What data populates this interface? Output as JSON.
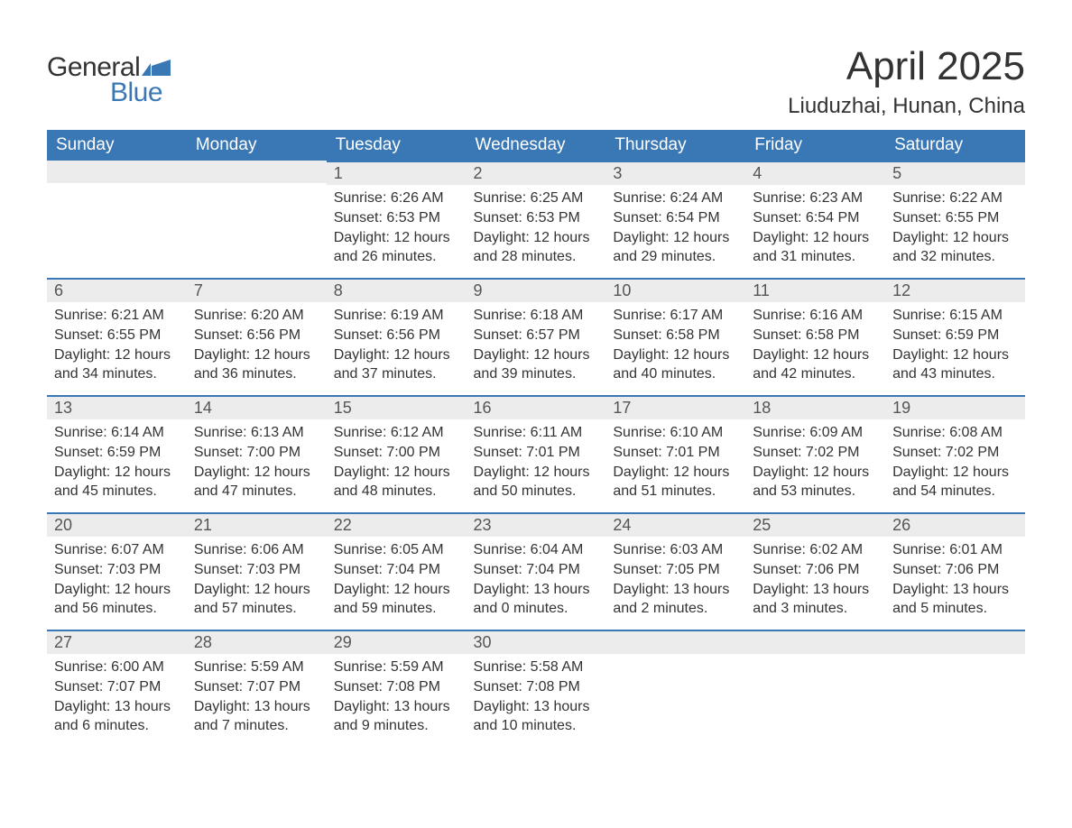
{
  "logo": {
    "text_general": "General",
    "text_blue": "Blue",
    "flag_color": "#3a78b5"
  },
  "title": {
    "month": "April 2025",
    "location": "Liuduzhai, Hunan, China"
  },
  "styling": {
    "header_bg": "#3a78b5",
    "header_text": "#ffffff",
    "daynum_bg": "#ececec",
    "daynum_border": "#3a78b5",
    "body_text": "#333333",
    "page_bg": "#ffffff",
    "title_fontsize": 44,
    "location_fontsize": 24,
    "header_fontsize": 19,
    "daynum_fontsize": 18,
    "cell_fontsize": 16
  },
  "weekdays": [
    "Sunday",
    "Monday",
    "Tuesday",
    "Wednesday",
    "Thursday",
    "Friday",
    "Saturday"
  ],
  "weeks": [
    [
      null,
      null,
      {
        "n": "1",
        "sr": "Sunrise: 6:26 AM",
        "ss": "Sunset: 6:53 PM",
        "d1": "Daylight: 12 hours",
        "d2": "and 26 minutes."
      },
      {
        "n": "2",
        "sr": "Sunrise: 6:25 AM",
        "ss": "Sunset: 6:53 PM",
        "d1": "Daylight: 12 hours",
        "d2": "and 28 minutes."
      },
      {
        "n": "3",
        "sr": "Sunrise: 6:24 AM",
        "ss": "Sunset: 6:54 PM",
        "d1": "Daylight: 12 hours",
        "d2": "and 29 minutes."
      },
      {
        "n": "4",
        "sr": "Sunrise: 6:23 AM",
        "ss": "Sunset: 6:54 PM",
        "d1": "Daylight: 12 hours",
        "d2": "and 31 minutes."
      },
      {
        "n": "5",
        "sr": "Sunrise: 6:22 AM",
        "ss": "Sunset: 6:55 PM",
        "d1": "Daylight: 12 hours",
        "d2": "and 32 minutes."
      }
    ],
    [
      {
        "n": "6",
        "sr": "Sunrise: 6:21 AM",
        "ss": "Sunset: 6:55 PM",
        "d1": "Daylight: 12 hours",
        "d2": "and 34 minutes."
      },
      {
        "n": "7",
        "sr": "Sunrise: 6:20 AM",
        "ss": "Sunset: 6:56 PM",
        "d1": "Daylight: 12 hours",
        "d2": "and 36 minutes."
      },
      {
        "n": "8",
        "sr": "Sunrise: 6:19 AM",
        "ss": "Sunset: 6:56 PM",
        "d1": "Daylight: 12 hours",
        "d2": "and 37 minutes."
      },
      {
        "n": "9",
        "sr": "Sunrise: 6:18 AM",
        "ss": "Sunset: 6:57 PM",
        "d1": "Daylight: 12 hours",
        "d2": "and 39 minutes."
      },
      {
        "n": "10",
        "sr": "Sunrise: 6:17 AM",
        "ss": "Sunset: 6:58 PM",
        "d1": "Daylight: 12 hours",
        "d2": "and 40 minutes."
      },
      {
        "n": "11",
        "sr": "Sunrise: 6:16 AM",
        "ss": "Sunset: 6:58 PM",
        "d1": "Daylight: 12 hours",
        "d2": "and 42 minutes."
      },
      {
        "n": "12",
        "sr": "Sunrise: 6:15 AM",
        "ss": "Sunset: 6:59 PM",
        "d1": "Daylight: 12 hours",
        "d2": "and 43 minutes."
      }
    ],
    [
      {
        "n": "13",
        "sr": "Sunrise: 6:14 AM",
        "ss": "Sunset: 6:59 PM",
        "d1": "Daylight: 12 hours",
        "d2": "and 45 minutes."
      },
      {
        "n": "14",
        "sr": "Sunrise: 6:13 AM",
        "ss": "Sunset: 7:00 PM",
        "d1": "Daylight: 12 hours",
        "d2": "and 47 minutes."
      },
      {
        "n": "15",
        "sr": "Sunrise: 6:12 AM",
        "ss": "Sunset: 7:00 PM",
        "d1": "Daylight: 12 hours",
        "d2": "and 48 minutes."
      },
      {
        "n": "16",
        "sr": "Sunrise: 6:11 AM",
        "ss": "Sunset: 7:01 PM",
        "d1": "Daylight: 12 hours",
        "d2": "and 50 minutes."
      },
      {
        "n": "17",
        "sr": "Sunrise: 6:10 AM",
        "ss": "Sunset: 7:01 PM",
        "d1": "Daylight: 12 hours",
        "d2": "and 51 minutes."
      },
      {
        "n": "18",
        "sr": "Sunrise: 6:09 AM",
        "ss": "Sunset: 7:02 PM",
        "d1": "Daylight: 12 hours",
        "d2": "and 53 minutes."
      },
      {
        "n": "19",
        "sr": "Sunrise: 6:08 AM",
        "ss": "Sunset: 7:02 PM",
        "d1": "Daylight: 12 hours",
        "d2": "and 54 minutes."
      }
    ],
    [
      {
        "n": "20",
        "sr": "Sunrise: 6:07 AM",
        "ss": "Sunset: 7:03 PM",
        "d1": "Daylight: 12 hours",
        "d2": "and 56 minutes."
      },
      {
        "n": "21",
        "sr": "Sunrise: 6:06 AM",
        "ss": "Sunset: 7:03 PM",
        "d1": "Daylight: 12 hours",
        "d2": "and 57 minutes."
      },
      {
        "n": "22",
        "sr": "Sunrise: 6:05 AM",
        "ss": "Sunset: 7:04 PM",
        "d1": "Daylight: 12 hours",
        "d2": "and 59 minutes."
      },
      {
        "n": "23",
        "sr": "Sunrise: 6:04 AM",
        "ss": "Sunset: 7:04 PM",
        "d1": "Daylight: 13 hours",
        "d2": "and 0 minutes."
      },
      {
        "n": "24",
        "sr": "Sunrise: 6:03 AM",
        "ss": "Sunset: 7:05 PM",
        "d1": "Daylight: 13 hours",
        "d2": "and 2 minutes."
      },
      {
        "n": "25",
        "sr": "Sunrise: 6:02 AM",
        "ss": "Sunset: 7:06 PM",
        "d1": "Daylight: 13 hours",
        "d2": "and 3 minutes."
      },
      {
        "n": "26",
        "sr": "Sunrise: 6:01 AM",
        "ss": "Sunset: 7:06 PM",
        "d1": "Daylight: 13 hours",
        "d2": "and 5 minutes."
      }
    ],
    [
      {
        "n": "27",
        "sr": "Sunrise: 6:00 AM",
        "ss": "Sunset: 7:07 PM",
        "d1": "Daylight: 13 hours",
        "d2": "and 6 minutes."
      },
      {
        "n": "28",
        "sr": "Sunrise: 5:59 AM",
        "ss": "Sunset: 7:07 PM",
        "d1": "Daylight: 13 hours",
        "d2": "and 7 minutes."
      },
      {
        "n": "29",
        "sr": "Sunrise: 5:59 AM",
        "ss": "Sunset: 7:08 PM",
        "d1": "Daylight: 13 hours",
        "d2": "and 9 minutes."
      },
      {
        "n": "30",
        "sr": "Sunrise: 5:58 AM",
        "ss": "Sunset: 7:08 PM",
        "d1": "Daylight: 13 hours",
        "d2": "and 10 minutes."
      },
      null,
      null,
      null
    ]
  ]
}
